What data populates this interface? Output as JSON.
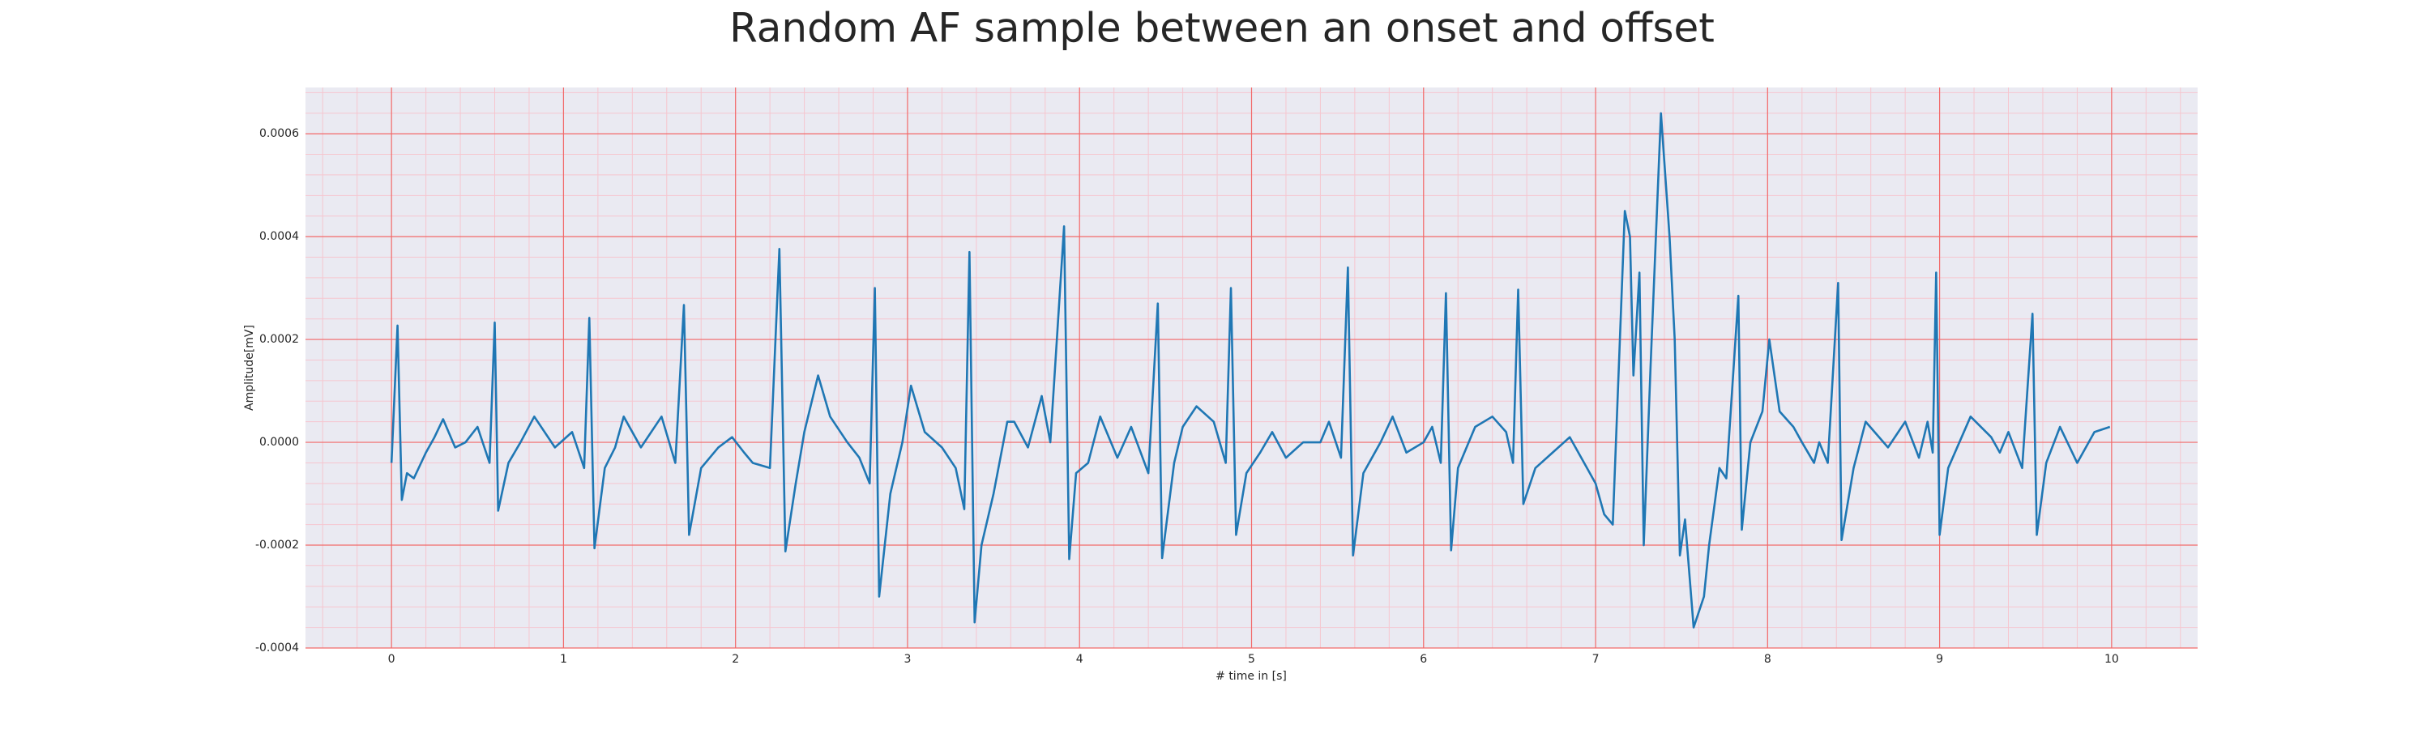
{
  "chart_data": {
    "type": "line",
    "title": "Random AF sample between an onset and offset",
    "xlabel": "# time in [s]",
    "ylabel": "Amplitude[mV]",
    "color": "#1f77b4",
    "grid": true,
    "minor_grid": true,
    "xlim": [
      -0.5,
      10.5
    ],
    "ylim": [
      -0.0004,
      0.00069
    ],
    "xticks": [
      0,
      1,
      2,
      3,
      4,
      5,
      6,
      7,
      8,
      9,
      10
    ],
    "yticks": [
      -0.0004,
      -0.0002,
      {
        "value": 0,
        "label": "0.0000"
      },
      0.0002,
      0.0004,
      0.0006
    ],
    "x": [
      0,
      0.035,
      0.06,
      0.09,
      0.13,
      0.2,
      0.25,
      0.3,
      0.37,
      0.43,
      0.5,
      0.57,
      0.6,
      0.62,
      0.68,
      0.75,
      0.83,
      0.95,
      1.05,
      1.12,
      1.15,
      1.18,
      1.24,
      1.3,
      1.35,
      1.45,
      1.57,
      1.65,
      1.7,
      1.73,
      1.8,
      1.9,
      1.98,
      2.05,
      2.1,
      2.2,
      2.255,
      2.29,
      2.35,
      2.4,
      2.48,
      2.55,
      2.65,
      2.72,
      2.78,
      2.81,
      2.835,
      2.9,
      2.97,
      3.02,
      3.1,
      3.2,
      3.28,
      3.33,
      3.36,
      3.39,
      3.43,
      3.5,
      3.58,
      3.62,
      3.7,
      3.78,
      3.83,
      3.91,
      3.94,
      3.98,
      4.05,
      4.12,
      4.22,
      4.3,
      4.4,
      4.455,
      4.48,
      4.55,
      4.6,
      4.68,
      4.78,
      4.85,
      4.88,
      4.91,
      4.97,
      5.05,
      5.12,
      5.2,
      5.3,
      5.4,
      5.45,
      5.52,
      5.56,
      5.59,
      5.65,
      5.75,
      5.82,
      5.9,
      6,
      6.05,
      6.1,
      6.13,
      6.16,
      6.2,
      6.3,
      6.4,
      6.48,
      6.52,
      6.55,
      6.58,
      6.65,
      6.75,
      6.85,
      6.95,
      7,
      7.05,
      7.1,
      7.17,
      7.2,
      7.22,
      7.255,
      7.28,
      7.32,
      7.38,
      7.43,
      7.46,
      7.49,
      7.52,
      7.57,
      7.63,
      7.66,
      7.72,
      7.76,
      7.83,
      7.85,
      7.9,
      7.97,
      8.01,
      8.07,
      8.15,
      8.2,
      8.27,
      8.3,
      8.35,
      8.41,
      8.43,
      8.5,
      8.57,
      8.7,
      8.8,
      8.88,
      8.93,
      8.96,
      8.98,
      9,
      9.05,
      9.18,
      9.3,
      9.35,
      9.4,
      9.48,
      9.54,
      9.565,
      9.62,
      9.7,
      9.8,
      9.9,
      9.99
    ],
    "values": [
      -4e-05,
      0.000227,
      -0.000112,
      -6e-05,
      -7e-05,
      -2e-05,
      1e-05,
      4.5e-05,
      -1e-05,
      0,
      3e-05,
      -4e-05,
      0.000233,
      -0.000133,
      -4e-05,
      0,
      5e-05,
      -1e-05,
      2e-05,
      -5e-05,
      0.000242,
      -0.000206,
      -5e-05,
      -1e-05,
      5e-05,
      -1e-05,
      5e-05,
      -4e-05,
      0.000267,
      -0.00018,
      -5e-05,
      -1e-05,
      1e-05,
      -2e-05,
      -4e-05,
      -5e-05,
      0.000376,
      -0.000212,
      -8e-05,
      2e-05,
      0.00013,
      5e-05,
      0,
      -3e-05,
      -8e-05,
      0.0003,
      -0.0003,
      -0.0001,
      0,
      0.00011,
      2e-05,
      -1e-05,
      -5e-05,
      -0.00013,
      0.00037,
      -0.00035,
      -0.0002,
      -0.0001,
      4e-05,
      4e-05,
      -1e-05,
      9e-05,
      0,
      0.00042,
      -0.000227,
      -6e-05,
      -4e-05,
      5e-05,
      -3e-05,
      3e-05,
      -6e-05,
      0.00027,
      -0.000225,
      -4e-05,
      3e-05,
      7e-05,
      4e-05,
      -4e-05,
      0.0003,
      -0.00018,
      -6e-05,
      -2e-05,
      2e-05,
      -3e-05,
      0,
      0,
      4e-05,
      -3e-05,
      0.00034,
      -0.00022,
      -6e-05,
      0,
      5e-05,
      -2e-05,
      0,
      3e-05,
      -4e-05,
      0.00029,
      -0.00021,
      -5e-05,
      3e-05,
      5e-05,
      2e-05,
      -4e-05,
      0.000297,
      -0.00012,
      -5e-05,
      -2e-05,
      1e-05,
      -5e-05,
      -8e-05,
      -0.00014,
      -0.00016,
      0.00045,
      0.0004,
      0.00013,
      0.00033,
      -0.0002,
      0.00015,
      0.00064,
      0.0004,
      0.0002,
      -0.00022,
      -0.00015,
      -0.00036,
      -0.0003,
      -0.0002,
      -5e-05,
      -7e-05,
      0.000285,
      -0.00017,
      0,
      6e-05,
      0.0002,
      6e-05,
      3e-05,
      0,
      -4e-05,
      0,
      -4e-05,
      0.00031,
      -0.00019,
      -5e-05,
      4e-05,
      -1e-05,
      4e-05,
      -3e-05,
      4e-05,
      -2e-05,
      0.00033,
      -0.00018,
      -5e-05,
      5e-05,
      1e-05,
      -2e-05,
      2e-05,
      -5e-05,
      0.00025,
      -0.00018,
      -4e-05,
      3e-05,
      -4e-05,
      2e-05,
      3e-05
    ]
  }
}
